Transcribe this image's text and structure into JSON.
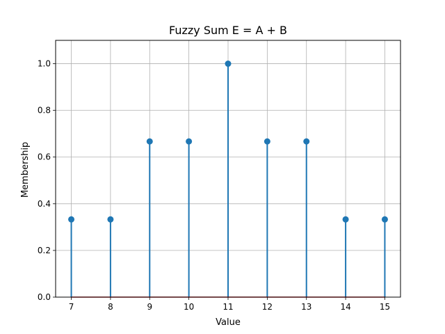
{
  "chart_data": {
    "type": "stem",
    "title": "Fuzzy Sum E = A + B",
    "xlabel": "Value",
    "ylabel": "Membership",
    "x": [
      7,
      8,
      9,
      10,
      11,
      12,
      13,
      14,
      15
    ],
    "values": [
      0.333,
      0.333,
      0.667,
      0.667,
      1.0,
      0.667,
      0.667,
      0.333,
      0.333
    ],
    "xticks": [
      "7",
      "8",
      "9",
      "10",
      "11",
      "12",
      "13",
      "14",
      "15"
    ],
    "yticks": [
      "0.0",
      "0.2",
      "0.4",
      "0.6",
      "0.8",
      "1.0"
    ],
    "ytick_values": [
      0,
      0.2,
      0.4,
      0.6,
      0.8,
      1.0
    ],
    "xlim": [
      6.6,
      15.4
    ],
    "ylim": [
      0,
      1.1
    ],
    "grid": true,
    "colors": {
      "stem": "#1f77b4",
      "baseline": "#d62728",
      "grid": "#b0b0b0"
    }
  }
}
